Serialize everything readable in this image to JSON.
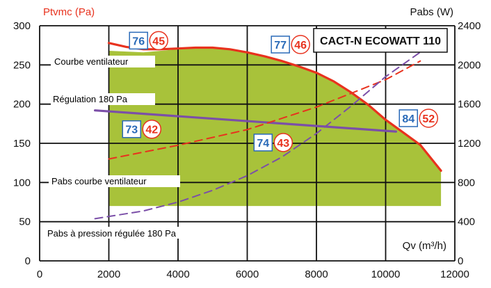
{
  "chart_data": {
    "type": "line",
    "title": "CACT-N ECOWATT 110",
    "ylabel": "Ptvmc (Pa)",
    "y2label": "Pabs (W)",
    "xlabel": "Qv (m³/h)",
    "xlim": [
      0,
      12000
    ],
    "ylim": [
      0,
      300
    ],
    "y2lim": [
      0,
      2400
    ],
    "xticks": [
      "0",
      "2000",
      "4000",
      "6000",
      "8000",
      "10000",
      "12000"
    ],
    "yticks": [
      "0",
      "50",
      "100",
      "150",
      "200",
      "250",
      "300"
    ],
    "y2ticks": [
      "0",
      "400",
      "800",
      "1200",
      "1600",
      "2000",
      "2400"
    ],
    "grid": true,
    "colors": {
      "fan_curve": "#e8321e",
      "regulation": "#7b4fa8",
      "area": "#a8c23a",
      "badge_blue": "#2a6ab8",
      "badge_red": "#e8321e"
    },
    "operating_area": {
      "label": "",
      "x": [
        2000,
        3000,
        4000,
        5000,
        6000,
        7000,
        8000,
        9000,
        10000,
        11000,
        11600
      ],
      "y_top": [
        268,
        266,
        270,
        272,
        266,
        255,
        240,
        215,
        180,
        148,
        115
      ],
      "y_bottom": 70
    },
    "series": [
      {
        "name": "Courbe ventilateur",
        "axis": "left",
        "style": "solid",
        "color": "#e8321e",
        "x": [
          2000,
          2500,
          3000,
          3500,
          4000,
          4500,
          5000,
          5500,
          6000,
          6500,
          7000,
          7500,
          8000,
          8500,
          9000,
          9500,
          10000,
          10500,
          11000,
          11600
        ],
        "y": [
          278,
          273,
          270,
          270,
          271,
          272,
          272,
          270,
          266,
          261,
          255,
          248,
          240,
          229,
          215,
          199,
          180,
          164,
          148,
          115
        ]
      },
      {
        "name": "Régulation 180 Pa",
        "axis": "left",
        "style": "solid",
        "color": "#7b4fa8",
        "x": [
          1600,
          10300
        ],
        "y": [
          192,
          165
        ]
      },
      {
        "name": "Pabs courbe ventilateur",
        "axis": "right",
        "style": "dashed",
        "color": "#e8321e",
        "x": [
          2000,
          4000,
          6000,
          8000,
          10000,
          11000
        ],
        "y": [
          1040,
          1180,
          1340,
          1570,
          1850,
          2040
        ]
      },
      {
        "name": "Pabs à pression régulée 180 Pa",
        "axis": "right",
        "style": "dashed",
        "color": "#7b4fa8",
        "x": [
          1600,
          3000,
          4000,
          5000,
          6000,
          7000,
          8000,
          9000,
          10000,
          11200
        ],
        "y": [
          430,
          510,
          600,
          720,
          870,
          1060,
          1300,
          1580,
          1880,
          2180
        ]
      }
    ],
    "annotations": [
      {
        "text": "Courbe ventilateur",
        "color": "#e8321e"
      },
      {
        "text": "Régulation 180 Pa",
        "color": "#7b4fa8"
      },
      {
        "text": "Pabs courbe ventilateur",
        "color": "#e8321e"
      },
      {
        "text": "Pabs à pression régulée 180 Pa",
        "color": "#7b4fa8"
      }
    ],
    "badges": [
      {
        "blue": "76",
        "red": "45",
        "x": 3200,
        "y": 281
      },
      {
        "blue": "77",
        "red": "46",
        "x": 7300,
        "y": 276
      },
      {
        "blue": "73",
        "red": "42",
        "x": 3000,
        "y": 168
      },
      {
        "blue": "74",
        "red": "43",
        "x": 6800,
        "y": 151
      },
      {
        "blue": "84",
        "red": "52",
        "x": 11000,
        "y": 182
      }
    ]
  }
}
